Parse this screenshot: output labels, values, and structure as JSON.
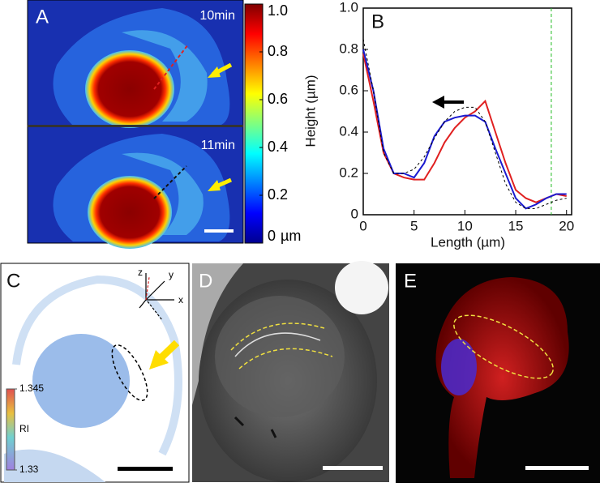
{
  "panel_a": {
    "label": "A",
    "time_labels": [
      "10min",
      "11min"
    ],
    "colorbar": {
      "range": [
        0,
        1.0
      ],
      "ticks": [
        0,
        0.2,
        0.4,
        0.6,
        0.8,
        {
          "value": 1.0,
          "label": "1.0"
        }
      ],
      "unit": "µm"
    }
  },
  "chart_data": {
    "type": "line",
    "label": "B",
    "xlabel": "Length (µm)",
    "ylabel": "Height (µm)",
    "x": [
      0,
      1,
      2,
      3,
      4,
      5,
      6,
      7,
      8,
      9,
      10,
      11,
      12,
      13,
      14,
      15,
      16,
      17,
      18,
      19,
      20
    ],
    "series": [
      {
        "color": "#e02020",
        "style": "solid",
        "values": [
          0.78,
          0.55,
          0.3,
          0.2,
          0.18,
          0.17,
          0.17,
          0.25,
          0.35,
          0.42,
          0.47,
          0.5,
          0.55,
          0.4,
          0.25,
          0.12,
          0.08,
          0.06,
          0.08,
          0.1,
          0.09
        ]
      },
      {
        "color": "#1a1ad0",
        "style": "solid",
        "values": [
          0.8,
          0.6,
          0.32,
          0.2,
          0.2,
          0.18,
          0.25,
          0.38,
          0.45,
          0.47,
          0.48,
          0.48,
          0.45,
          0.32,
          0.2,
          0.08,
          0.03,
          0.05,
          0.08,
          0.1,
          0.1
        ]
      },
      {
        "color": "#000000",
        "style": "dashed",
        "values": [
          0.85,
          0.6,
          0.3,
          0.2,
          0.2,
          0.22,
          0.28,
          0.37,
          0.45,
          0.5,
          0.52,
          0.52,
          0.45,
          0.3,
          0.15,
          0.06,
          0.03,
          0.03,
          0.05,
          0.07,
          0.08
        ]
      }
    ],
    "vline_x": 18.5,
    "vline_color": "#22bb22",
    "xlim": [
      0,
      20.5
    ],
    "xticks": [
      0,
      5,
      10,
      15,
      20
    ],
    "ylim": [
      0,
      1.0
    ],
    "yticks": [
      0,
      0.2,
      0.4,
      0.6,
      0.8,
      {
        "value": 1.0,
        "label": "1.0"
      }
    ]
  },
  "panel_c": {
    "label": "C",
    "axes": [
      "x",
      "y",
      "z"
    ],
    "colorbar": {
      "title": "RI",
      "range": [
        1.33,
        1.345
      ],
      "ticks": [
        1.33,
        1.345
      ]
    }
  },
  "panel_d": {
    "label": "D"
  },
  "panel_e": {
    "label": "E"
  }
}
